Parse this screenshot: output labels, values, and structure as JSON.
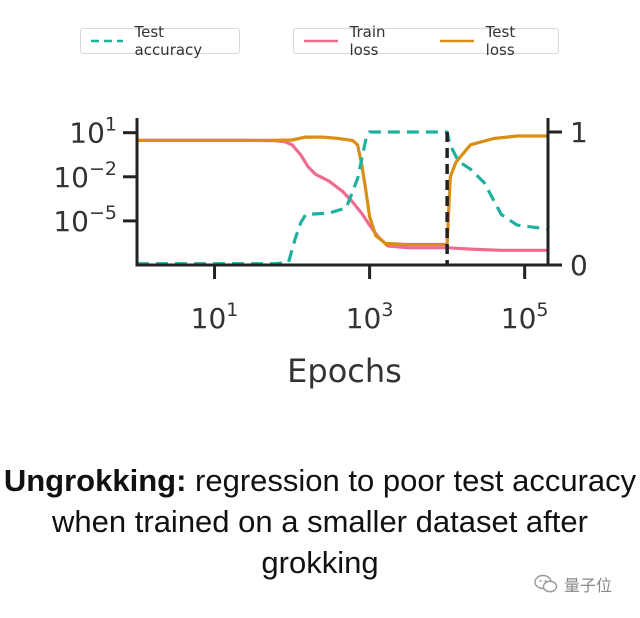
{
  "chart_data": {
    "type": "line",
    "xlabel": "Epochs",
    "x_scale": "log",
    "xlim": [
      1,
      200000
    ],
    "x_ticks": [
      10,
      1000,
      100000
    ],
    "x_tick_labels": [
      {
        "base": "10",
        "exp": "1"
      },
      {
        "base": "10",
        "exp": "3"
      },
      {
        "base": "10",
        "exp": "5"
      }
    ],
    "y_left_scale": "log",
    "y_left_lim": [
      1e-08,
      100
    ],
    "y_left_ticks": [
      10,
      0.01,
      1e-05
    ],
    "y_left_tick_labels": [
      {
        "base": "10",
        "exp": "1"
      },
      {
        "base": "10",
        "exp": "−2"
      },
      {
        "base": "10",
        "exp": "−5"
      }
    ],
    "y_right_lim": [
      0,
      1.0
    ],
    "y_right_ticks": [
      1,
      0
    ],
    "y_right_tick_labels": [
      "1",
      "0"
    ],
    "vline_x": 10000,
    "grid": false,
    "series": [
      {
        "name": "Train loss",
        "axis": "left",
        "color": "#f06c8f",
        "dash": "solid",
        "points": [
          [
            1,
            3
          ],
          [
            30,
            3
          ],
          [
            60,
            2.9
          ],
          [
            80,
            2.5
          ],
          [
            100,
            1.5
          ],
          [
            130,
            0.3
          ],
          [
            160,
            0.05
          ],
          [
            200,
            0.015
          ],
          [
            300,
            0.005
          ],
          [
            450,
            0.001
          ],
          [
            600,
            0.0002
          ],
          [
            800,
            3e-05
          ],
          [
            1000,
            5e-06
          ],
          [
            1300,
            8e-07
          ],
          [
            1700,
            2e-07
          ],
          [
            3000,
            1.5e-07
          ],
          [
            10000,
            1.5e-07
          ],
          [
            20000,
            1.2e-07
          ],
          [
            50000,
            1e-07
          ],
          [
            200000,
            1e-07
          ]
        ]
      },
      {
        "name": "Test loss",
        "axis": "left",
        "color": "#d98f13",
        "dash": "solid",
        "points": [
          [
            1,
            3
          ],
          [
            50,
            3
          ],
          [
            100,
            3.2
          ],
          [
            150,
            5
          ],
          [
            250,
            5
          ],
          [
            400,
            4
          ],
          [
            600,
            3
          ],
          [
            700,
            1.5
          ],
          [
            800,
            0.05
          ],
          [
            900,
            0.001
          ],
          [
            1000,
            2e-05
          ],
          [
            1200,
            1e-06
          ],
          [
            1600,
            3e-07
          ],
          [
            3000,
            2.5e-07
          ],
          [
            10000,
            2.5e-07
          ],
          [
            11000,
            0.01
          ],
          [
            13000,
            0.1
          ],
          [
            20000,
            1.5
          ],
          [
            40000,
            4
          ],
          [
            80000,
            6
          ],
          [
            200000,
            6
          ]
        ]
      },
      {
        "name": "Test accuracy",
        "axis": "right",
        "color": "#1fb1a0",
        "dash": "dashed",
        "points": [
          [
            1,
            0.01
          ],
          [
            60,
            0.01
          ],
          [
            90,
            0.02
          ],
          [
            110,
            0.2
          ],
          [
            130,
            0.32
          ],
          [
            150,
            0.38
          ],
          [
            300,
            0.39
          ],
          [
            500,
            0.43
          ],
          [
            700,
            0.65
          ],
          [
            900,
            0.95
          ],
          [
            1000,
            1.0
          ],
          [
            10000,
            1.0
          ],
          [
            11000,
            0.9
          ],
          [
            14000,
            0.78
          ],
          [
            20000,
            0.72
          ],
          [
            30000,
            0.62
          ],
          [
            50000,
            0.38
          ],
          [
            80000,
            0.3
          ],
          [
            200000,
            0.27
          ]
        ]
      }
    ]
  },
  "caption": {
    "bold": "Ungrokking:",
    "text": " regression to poor test accuracy when trained on a smaller dataset after grokking"
  },
  "watermark": {
    "text": "量子位",
    "icon": "wechat-icon"
  }
}
